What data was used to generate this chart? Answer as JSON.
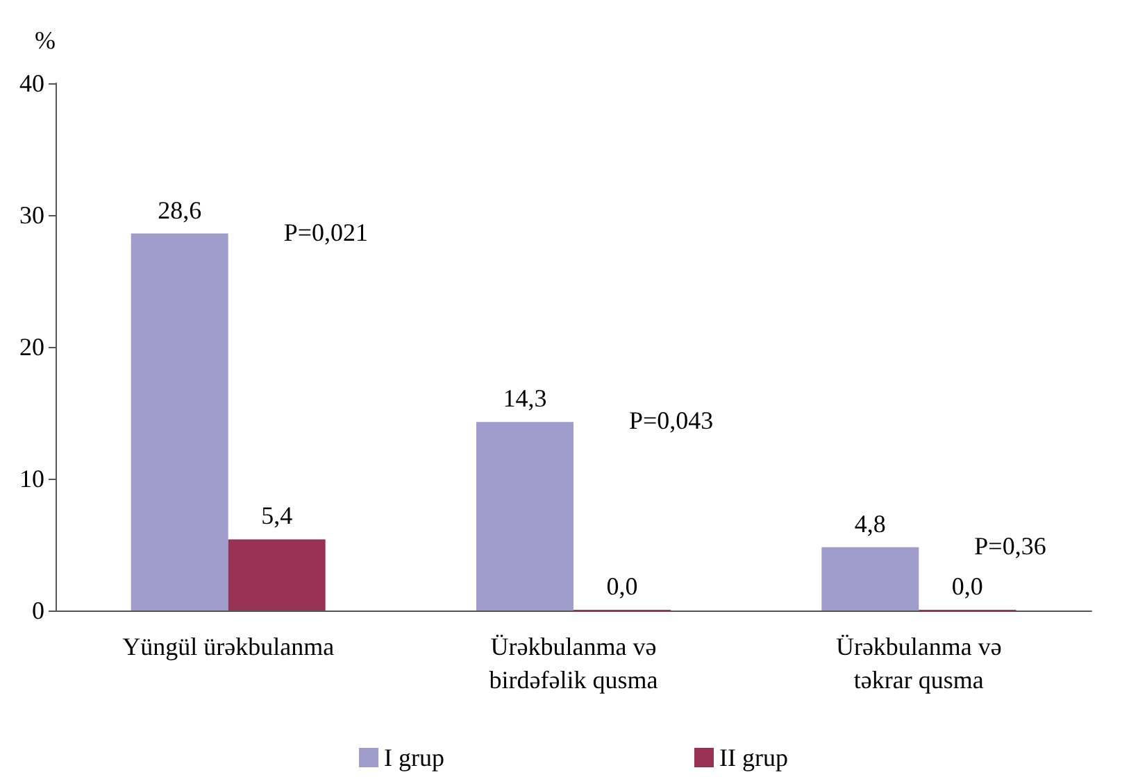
{
  "chart_data": {
    "type": "bar",
    "ylabel": "%",
    "categories": [
      "Yüngül ürəkbulanma",
      "Ürəkbulanma və birdəfəlik qusma",
      "Ürəkbulanma və təkrar qusma"
    ],
    "series": [
      {
        "name": "I grup",
        "color": "#a09ccc",
        "values": [
          28.6,
          14.3,
          4.8
        ],
        "value_labels": [
          "28,6",
          "14,3",
          "4,8"
        ]
      },
      {
        "name": "II grup",
        "color": "#993355",
        "values": [
          5.4,
          0,
          0
        ],
        "value_labels": [
          "5,4",
          "0,0",
          "0,0"
        ]
      }
    ],
    "ylim": [
      0,
      40
    ],
    "yticks": [
      0,
      10,
      20,
      30,
      40
    ],
    "grid": false,
    "legend": "bottom",
    "annotations": [
      "P=0,021",
      "P=0,043",
      "P=0,36"
    ]
  }
}
